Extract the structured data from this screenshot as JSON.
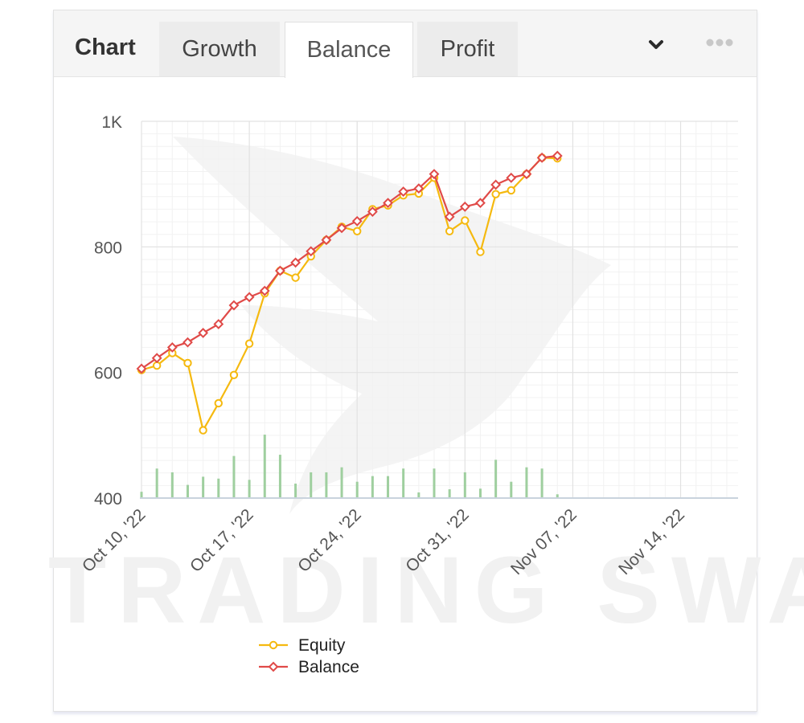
{
  "tabs": {
    "title": "Chart",
    "items": [
      {
        "label": "Growth",
        "active": false
      },
      {
        "label": "Balance",
        "active": true
      },
      {
        "label": "Profit",
        "active": false
      }
    ]
  },
  "icons": {
    "dropdown": "chevron-down-icon",
    "more": "more-dots-icon"
  },
  "watermark": {
    "text": "TRADING SWAP"
  },
  "chart_data": {
    "type": "line",
    "ylim": [
      400,
      1000
    ],
    "yticks": [
      {
        "value": 1000,
        "label": "1K"
      },
      {
        "value": 800,
        "label": "800"
      },
      {
        "value": 600,
        "label": "600"
      },
      {
        "value": 400,
        "label": "400"
      }
    ],
    "x_range": [
      "2022-10-10",
      "2022-11-17"
    ],
    "xticks": [
      {
        "date": "2022-10-10",
        "label": "Oct 10, '22"
      },
      {
        "date": "2022-10-17",
        "label": "Oct 17, '22"
      },
      {
        "date": "2022-10-24",
        "label": "Oct 24, '22"
      },
      {
        "date": "2022-10-31",
        "label": "Oct 31, '22"
      },
      {
        "date": "2022-11-07",
        "label": "Nov 07, '22"
      },
      {
        "date": "2022-11-14",
        "label": "Nov 14, '22"
      }
    ],
    "x": [
      "2022-10-10",
      "2022-10-11",
      "2022-10-12",
      "2022-10-13",
      "2022-10-14",
      "2022-10-15",
      "2022-10-16",
      "2022-10-17",
      "2022-10-18",
      "2022-10-19",
      "2022-10-20",
      "2022-10-21",
      "2022-10-22",
      "2022-10-23",
      "2022-10-24",
      "2022-10-25",
      "2022-10-26",
      "2022-10-27",
      "2022-10-28",
      "2022-10-29",
      "2022-10-30",
      "2022-10-31",
      "2022-11-01",
      "2022-11-02",
      "2022-11-03",
      "2022-11-04",
      "2022-11-05",
      "2022-11-06",
      "2022-11-07",
      "2022-11-08",
      "2022-11-09",
      "2022-11-10",
      "2022-11-11",
      "2022-11-12",
      "2022-11-13",
      "2022-11-14",
      "2022-11-15",
      "2022-11-16",
      "2022-11-17"
    ],
    "series": [
      {
        "name": "Equity",
        "color": "#f5b90f",
        "marker": "circle",
        "points": [
          {
            "x": "2022-10-10",
            "y": 604
          },
          {
            "x": "2022-10-11",
            "y": 611
          },
          {
            "x": "2022-10-12",
            "y": 631
          },
          {
            "x": "2022-10-13",
            "y": 615
          },
          {
            "x": "2022-10-14",
            "y": 508
          },
          {
            "x": "2022-10-15",
            "y": 551
          },
          {
            "x": "2022-10-16",
            "y": 596
          },
          {
            "x": "2022-10-17",
            "y": 646
          },
          {
            "x": "2022-10-18",
            "y": 726
          },
          {
            "x": "2022-10-19",
            "y": 762
          },
          {
            "x": "2022-10-20",
            "y": 751
          },
          {
            "x": "2022-10-21",
            "y": 785
          },
          {
            "x": "2022-10-22",
            "y": 811
          },
          {
            "x": "2022-10-23",
            "y": 832
          },
          {
            "x": "2022-10-24",
            "y": 825
          },
          {
            "x": "2022-10-25",
            "y": 860
          },
          {
            "x": "2022-10-26",
            "y": 866
          },
          {
            "x": "2022-10-27",
            "y": 882
          },
          {
            "x": "2022-10-28",
            "y": 885
          },
          {
            "x": "2022-10-29",
            "y": 910
          },
          {
            "x": "2022-10-30",
            "y": 825
          },
          {
            "x": "2022-10-31",
            "y": 842
          },
          {
            "x": "2022-11-01",
            "y": 792
          },
          {
            "x": "2022-11-02",
            "y": 884
          },
          {
            "x": "2022-11-03",
            "y": 890
          },
          {
            "x": "2022-11-04",
            "y": 916
          },
          {
            "x": "2022-11-05",
            "y": 942
          },
          {
            "x": "2022-11-06",
            "y": 941
          }
        ]
      },
      {
        "name": "Balance",
        "color": "#e04a48",
        "marker": "diamond",
        "points": [
          {
            "x": "2022-10-10",
            "y": 606
          },
          {
            "x": "2022-10-11",
            "y": 623
          },
          {
            "x": "2022-10-12",
            "y": 640
          },
          {
            "x": "2022-10-13",
            "y": 648
          },
          {
            "x": "2022-10-14",
            "y": 663
          },
          {
            "x": "2022-10-15",
            "y": 677
          },
          {
            "x": "2022-10-16",
            "y": 707
          },
          {
            "x": "2022-10-17",
            "y": 720
          },
          {
            "x": "2022-10-18",
            "y": 730
          },
          {
            "x": "2022-10-19",
            "y": 762
          },
          {
            "x": "2022-10-20",
            "y": 775
          },
          {
            "x": "2022-10-21",
            "y": 793
          },
          {
            "x": "2022-10-22",
            "y": 811
          },
          {
            "x": "2022-10-23",
            "y": 830
          },
          {
            "x": "2022-10-24",
            "y": 841
          },
          {
            "x": "2022-10-25",
            "y": 856
          },
          {
            "x": "2022-10-26",
            "y": 870
          },
          {
            "x": "2022-10-27",
            "y": 888
          },
          {
            "x": "2022-10-28",
            "y": 893
          },
          {
            "x": "2022-10-29",
            "y": 916
          },
          {
            "x": "2022-10-30",
            "y": 848
          },
          {
            "x": "2022-10-31",
            "y": 864
          },
          {
            "x": "2022-11-01",
            "y": 870
          },
          {
            "x": "2022-11-02",
            "y": 899
          },
          {
            "x": "2022-11-03",
            "y": 910
          },
          {
            "x": "2022-11-04",
            "y": 916
          },
          {
            "x": "2022-11-05",
            "y": 942
          },
          {
            "x": "2022-11-06",
            "y": 945
          }
        ]
      }
    ],
    "volume": {
      "color": "#9fcf9f",
      "values": [
        410,
        447,
        441,
        421,
        434,
        431,
        467,
        429,
        501,
        469,
        423,
        441,
        441,
        449,
        426,
        435,
        435,
        447,
        409,
        447,
        414,
        441,
        415,
        461,
        426,
        449,
        447,
        406
      ]
    },
    "legend": {
      "placement": "bottom-left",
      "entries": [
        "Equity",
        "Balance"
      ]
    },
    "grid": true
  }
}
